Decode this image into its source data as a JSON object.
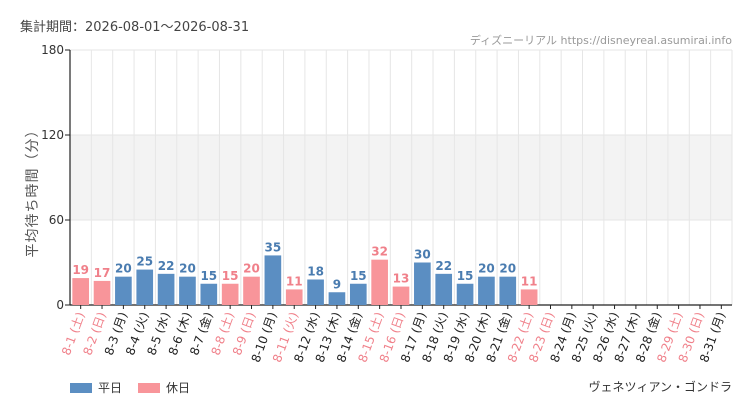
{
  "header": {
    "period": "集計期間：2026-08-01～2026-08-31",
    "source": "ディズニーリアル https://disneyreal.asumirai.info"
  },
  "footer": {
    "ride_name": "ヴェネツィアン・ゴンドラ"
  },
  "colors": {
    "weekday": "#5b8ec2",
    "holiday": "#f8959a",
    "holiday_text": "#f0808a",
    "weekday_text": "#4a7cb0",
    "band": "#f3f3f3",
    "grid": "#e6e6e6",
    "axis": "#222222"
  },
  "chart_data": {
    "type": "bar",
    "ylabel": "平均待ち時間（分）",
    "ylim": [
      0,
      180
    ],
    "yticks": [
      0,
      60,
      120,
      180
    ],
    "bands": [
      [
        60,
        120
      ]
    ],
    "legend": [
      {
        "key": "weekday",
        "label": "平日"
      },
      {
        "key": "holiday",
        "label": "休日"
      }
    ],
    "categories": [
      "8-1 (土)",
      "8-2 (日)",
      "8-3 (月)",
      "8-4 (火)",
      "8-5 (水)",
      "8-6 (木)",
      "8-7 (金)",
      "8-8 (土)",
      "8-9 (日)",
      "8-10 (月)",
      "8-11 (火)",
      "8-12 (水)",
      "8-13 (木)",
      "8-14 (金)",
      "8-15 (土)",
      "8-16 (日)",
      "8-17 (月)",
      "8-18 (火)",
      "8-19 (水)",
      "8-20 (木)",
      "8-21 (金)",
      "8-22 (土)",
      "8-23 (日)",
      "8-24 (月)",
      "8-25 (火)",
      "8-26 (水)",
      "8-27 (木)",
      "8-28 (金)",
      "8-29 (土)",
      "8-30 (日)",
      "8-31 (月)"
    ],
    "day_type": [
      "holiday",
      "holiday",
      "weekday",
      "weekday",
      "weekday",
      "weekday",
      "weekday",
      "holiday",
      "holiday",
      "weekday",
      "holiday",
      "weekday",
      "weekday",
      "weekday",
      "holiday",
      "holiday",
      "weekday",
      "weekday",
      "weekday",
      "weekday",
      "weekday",
      "holiday",
      "holiday",
      "weekday",
      "weekday",
      "weekday",
      "weekday",
      "weekday",
      "holiday",
      "holiday",
      "weekday"
    ],
    "values": [
      19,
      17,
      20,
      25,
      22,
      20,
      15,
      15,
      20,
      35,
      11,
      18,
      9,
      15,
      32,
      13,
      30,
      22,
      15,
      20,
      20,
      11,
      null,
      null,
      null,
      null,
      null,
      null,
      null,
      null,
      null
    ]
  }
}
